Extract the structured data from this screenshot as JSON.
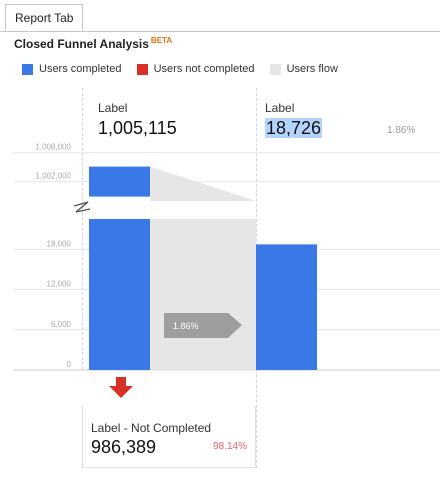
{
  "tab": {
    "label": "Report Tab"
  },
  "header": {
    "title": "Closed Funnel Analysis",
    "badge": "BETA"
  },
  "legend": [
    {
      "label": "Users completed",
      "color": "#3b78e7"
    },
    {
      "label": "Users not completed",
      "color": "#d93025"
    },
    {
      "label": "Users flow",
      "color": "#e6e6e6"
    }
  ],
  "steps": [
    {
      "label": "Label",
      "value": "1,005,115"
    },
    {
      "label": "Label",
      "value": "18,726",
      "percent": "1.86%"
    }
  ],
  "flow_badge": "1.86%",
  "not_completed": {
    "label": "Label - Not Completed",
    "value": "986,389",
    "percent": "98.14%"
  },
  "icons": {
    "axis_break": "axis-break-icon",
    "drop_arrow": "down-arrow-icon"
  },
  "chart_data": {
    "type": "bar",
    "categories": [
      "Label",
      "Label"
    ],
    "series": [
      {
        "name": "Users completed",
        "values": [
          1005115,
          18726
        ]
      }
    ],
    "flow_percent": 1.86,
    "y_axis": {
      "broken": true,
      "upper_ticks": [
        1002000,
        1008000
      ],
      "lower_ticks": [
        0,
        6000,
        12000,
        18000
      ],
      "upper_ylim": [
        998000,
        1010000
      ],
      "lower_ylim": [
        0,
        24000
      ]
    }
  }
}
